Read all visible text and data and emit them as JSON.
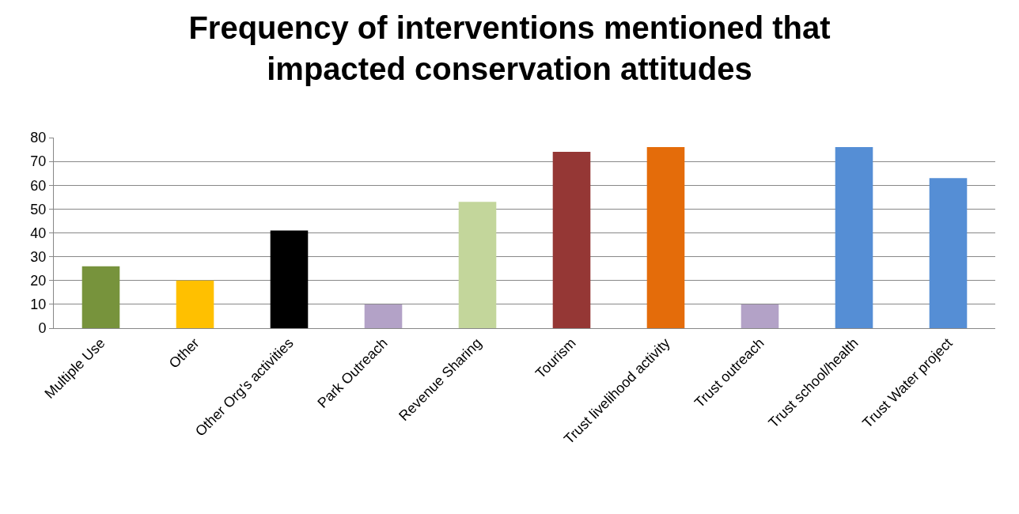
{
  "chart_data": {
    "type": "bar",
    "title": "Frequency of interventions mentioned that\nimpacted conservation attitudes",
    "categories": [
      "Multiple Use",
      "Other",
      "Other Org's activities",
      "Park Outreach",
      "Revenue Sharing",
      "Tourism",
      "Trust livelihood activity",
      "Trust outreach",
      "Trust school/health",
      "Trust Water project"
    ],
    "values": [
      26,
      20,
      41,
      10,
      53,
      74,
      76,
      10,
      76,
      63
    ],
    "colors": [
      "#77933c",
      "#ffc000",
      "#000000",
      "#b3a2c7",
      "#c3d69b",
      "#953735",
      "#e46c0a",
      "#b3a2c7",
      "#558ed5",
      "#558ed5"
    ],
    "ylim": [
      0,
      80
    ],
    "yticks": [
      0,
      10,
      20,
      30,
      40,
      50,
      60,
      70,
      80
    ],
    "grid": "y",
    "legend": false
  }
}
